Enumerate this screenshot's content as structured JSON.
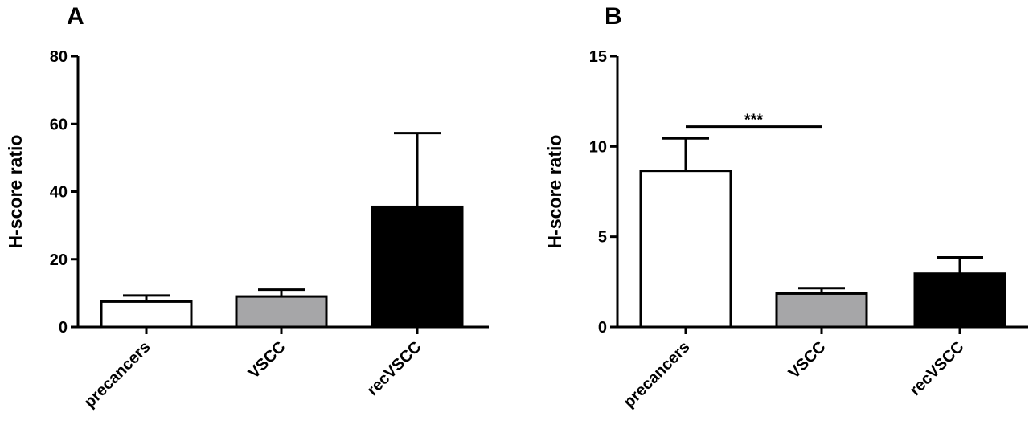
{
  "chart_data": [
    {
      "type": "bar",
      "panel_label": "A",
      "ylabel": "H-score ratio",
      "categories": [
        "precancers",
        "VSCC",
        "recVSCC"
      ],
      "values": [
        7.5,
        9.0,
        35.5
      ],
      "error_upper": [
        9.3,
        11.0,
        57.3
      ],
      "bar_colors": [
        "#ffffff",
        "#a6a6a8",
        "#000000"
      ],
      "ylim": [
        0,
        80
      ],
      "yticks": [
        0,
        20,
        40,
        60,
        80
      ],
      "grid": false,
      "significance": null
    },
    {
      "type": "bar",
      "panel_label": "B",
      "ylabel": "H-score ratio",
      "categories": [
        "precancers",
        "VSCC",
        "recVSCC"
      ],
      "values": [
        8.65,
        1.85,
        2.95
      ],
      "error_upper": [
        10.45,
        2.15,
        3.85
      ],
      "bar_colors": [
        "#ffffff",
        "#a6a6a8",
        "#000000"
      ],
      "ylim": [
        0,
        15
      ],
      "yticks": [
        0,
        5,
        10,
        15
      ],
      "grid": false,
      "significance": {
        "from": "precancers",
        "to": "VSCC",
        "label": "***",
        "level": 11.1
      }
    }
  ]
}
